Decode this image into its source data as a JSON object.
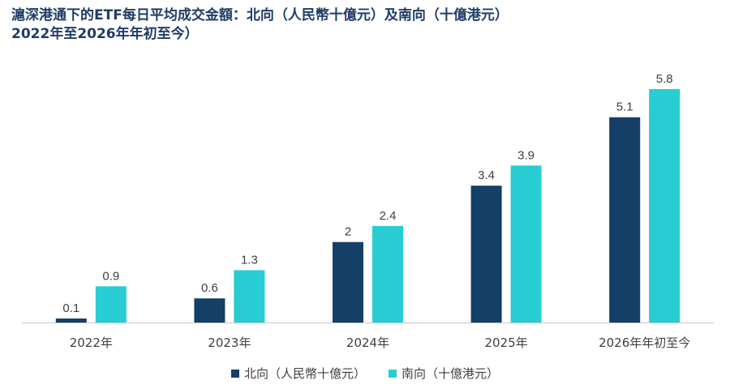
{
  "chart_data": {
    "type": "bar",
    "title": "滬深港通下的ETF每日平均成交金額：北向（人民幣十億元）及南向（十億港元）",
    "subtitle": "2022年至2026年年初至今）",
    "categories": [
      "2022年",
      "2023年",
      "2024年",
      "2025年",
      "2026年年初至今"
    ],
    "series": [
      {
        "name": "北向（人民幣十億元）",
        "color": "#143f66",
        "values": [
          0.1,
          0.6,
          2,
          3.4,
          5.1
        ],
        "labels": [
          "0.1",
          "0.6",
          "2",
          "3.4",
          "5.1"
        ]
      },
      {
        "name": "南向（十億港元）",
        "color": "#27cdd3",
        "values": [
          0.9,
          1.3,
          2.4,
          3.9,
          5.8
        ],
        "labels": [
          "0.9",
          "1.3",
          "2.4",
          "3.9",
          "5.8"
        ]
      }
    ],
    "ylim": [
      0,
      6.1
    ],
    "grid": false,
    "legend_position": "bottom"
  }
}
